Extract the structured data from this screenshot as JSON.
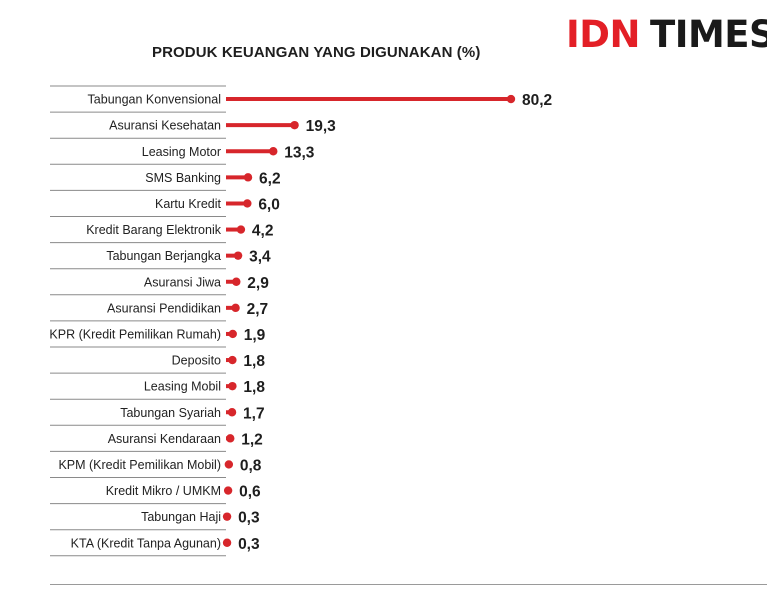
{
  "logo": {
    "brand": "IDN",
    "sub": "TIMES",
    "brand_color": "#e31f26"
  },
  "chart_data": {
    "type": "bar",
    "title": "PRODUK KEUANGAN YANG DIGUNAKAN (%)",
    "categories": [
      "Tabungan Konvensional",
      "Asuransi Kesehatan",
      "Leasing Motor",
      "SMS Banking",
      "Kartu Kredit",
      "Kredit Barang Elektronik",
      "Tabungan Berjangka",
      "Asuransi Jiwa",
      "Asuransi Pendidikan",
      "KPR (Kredit Pemilikan Rumah)",
      "Deposito",
      "Leasing Mobil",
      "Tabungan Syariah",
      "Asuransi Kendaraan",
      "KPM (Kredit Pemilikan Mobil)",
      "Kredit Mikro / UMKM",
      "Tabungan Haji",
      "KTA (Kredit Tanpa Agunan)"
    ],
    "values": [
      80.2,
      19.3,
      13.3,
      6.2,
      6.0,
      4.2,
      3.4,
      2.9,
      2.7,
      1.9,
      1.8,
      1.8,
      1.7,
      1.2,
      0.8,
      0.6,
      0.3,
      0.3
    ],
    "value_labels": [
      "80,2",
      "19,3",
      "13,3",
      "6,2",
      "6,0",
      "4,2",
      "3,4",
      "2,9",
      "2,7",
      "1,9",
      "1,8",
      "1,8",
      "1,7",
      "1,2",
      "0,8",
      "0,6",
      "0,3",
      "0,3"
    ],
    "bar_color": "#d7262b",
    "divider_color": "#8a8a8a",
    "orientation": "horizontal",
    "xlim": [
      0,
      80.2
    ],
    "grid": false,
    "legend": "none"
  }
}
